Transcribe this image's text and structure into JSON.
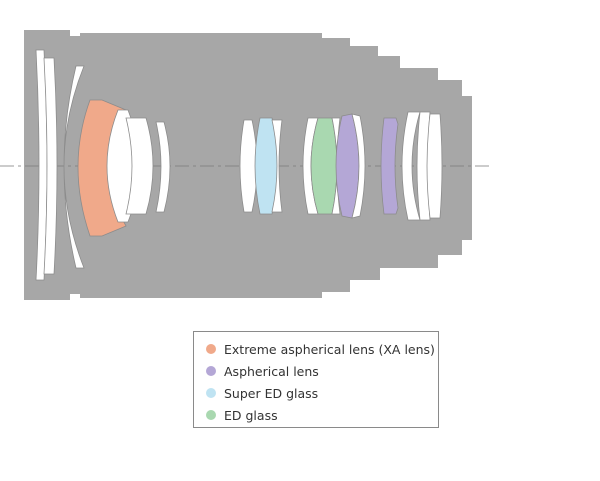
{
  "legend": {
    "items": [
      {
        "label": "Extreme aspherical lens (XA lens)",
        "color": "#f0a98a"
      },
      {
        "label": "Aspherical lens",
        "color": "#b4a7d6"
      },
      {
        "label": "Super ED glass",
        "color": "#bfe3f2"
      },
      {
        "label": "ED glass",
        "color": "#a9d8b0"
      }
    ]
  },
  "colors": {
    "barrel": "#a7a7a7",
    "lens_plain": "#ffffff",
    "lens_outline": "#8c8c8c",
    "axis": "#7a7a7a"
  }
}
